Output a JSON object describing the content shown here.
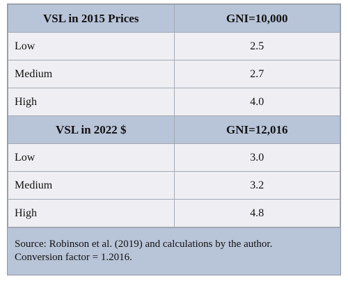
{
  "sections": [
    {
      "header": [
        "VSL in 2015 Prices",
        "GNI=10,000"
      ],
      "rows": [
        [
          "Low",
          "2.5"
        ],
        [
          "Medium",
          "2.7"
        ],
        [
          "High",
          "4.0"
        ]
      ]
    },
    {
      "header": [
        "VSL in 2022 $",
        "GNI=12,016"
      ],
      "rows": [
        [
          "Low",
          "3.0"
        ],
        [
          "Medium",
          "3.2"
        ],
        [
          "High",
          "4.8"
        ]
      ]
    }
  ],
  "note": [
    "Source: Robinson et al. (2019) and calculations by the author.",
    "Conversion factor = 1.2016."
  ]
}
